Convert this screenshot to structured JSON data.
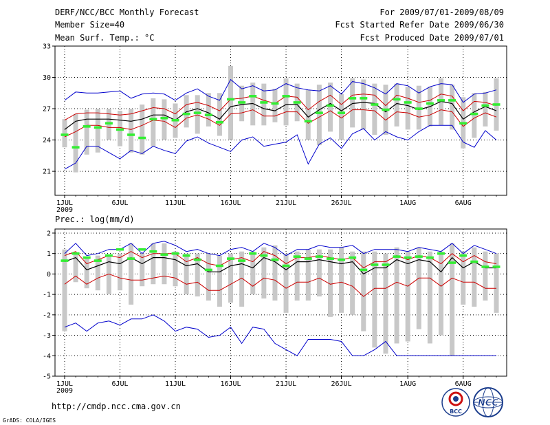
{
  "header": {
    "title": "DERF/NCC/BCC Monthly Forecast",
    "member_size": "Member Size=40",
    "variable": "Mean Surf. Temp.: °C",
    "period": "For 2009/07/01-2009/08/09",
    "started": "Fcst Started Refer Date 2009/06/30",
    "produced": "Fcst Produced Date 2009/07/01"
  },
  "footer": {
    "url": "http://cmdp.ncc.cma.gov.cn",
    "grads": "GrADS: COLA/IGES",
    "logo_bcc": "BCC",
    "logo_ncc": "NCC"
  },
  "colors": {
    "median": "#000000",
    "inner": "#cc0000",
    "outer": "#0000cc",
    "spread": "#c8c8c8",
    "mark": "#33ee33"
  },
  "chart_data": [
    {
      "type": "line",
      "title": "Mean Surf. Temp.: °C",
      "days": 40,
      "x_tick_labels": [
        "1JUL",
        "6JUL",
        "11JUL",
        "16JUL",
        "21JUL",
        "26JUL",
        "1AUG",
        "6AUG"
      ],
      "x_tick_days": [
        1,
        6,
        11,
        16,
        21,
        26,
        32,
        37
      ],
      "x_year_label": "2009",
      "ylim": [
        18.7,
        33
      ],
      "y_ticks": [
        21,
        24,
        27,
        30,
        33
      ],
      "y_tick_labels": [
        "21",
        "24",
        "27",
        "30",
        "33"
      ],
      "series": [
        {
          "name": "max",
          "role": "outer",
          "values": [
            27.8,
            28.6,
            28.5,
            28.5,
            28.6,
            28.7,
            28.0,
            28.4,
            28.5,
            28.4,
            27.8,
            28.5,
            28.9,
            28.2,
            27.8,
            29.8,
            28.9,
            29.2,
            28.7,
            28.8,
            29.4,
            29.0,
            28.8,
            28.7,
            29.2,
            28.4,
            29.6,
            29.4,
            29.0,
            28.4,
            29.4,
            29.2,
            28.5,
            29.1,
            29.4,
            29.3,
            27.6,
            28.4,
            28.5,
            28.8
          ]
        },
        {
          "name": "upper",
          "role": "inner",
          "values": [
            25.9,
            26.5,
            26.6,
            26.6,
            26.5,
            26.4,
            26.5,
            26.8,
            27.1,
            27.0,
            26.5,
            27.4,
            27.6,
            27.3,
            26.8,
            27.9,
            28.0,
            28.2,
            27.8,
            27.5,
            28.2,
            28.1,
            26.9,
            27.7,
            28.3,
            27.4,
            28.3,
            28.4,
            28.3,
            27.3,
            28.3,
            28.0,
            27.6,
            27.8,
            28.4,
            28.2,
            26.8,
            27.7,
            27.6,
            27.3
          ]
        },
        {
          "name": "median",
          "role": "median",
          "values": [
            25.0,
            25.8,
            26.0,
            26.0,
            26.0,
            25.9,
            25.8,
            26.0,
            26.4,
            26.4,
            25.9,
            26.7,
            27.0,
            26.6,
            26.0,
            27.2,
            27.4,
            27.5,
            27.0,
            26.8,
            27.4,
            27.4,
            26.2,
            26.9,
            27.5,
            26.8,
            27.5,
            27.6,
            27.5,
            26.7,
            27.5,
            27.3,
            26.9,
            27.2,
            27.7,
            27.5,
            26.0,
            26.7,
            27.2,
            26.8
          ]
        },
        {
          "name": "lower",
          "role": "inner",
          "values": [
            24.3,
            24.8,
            25.4,
            25.4,
            25.2,
            25.2,
            25.0,
            25.4,
            25.9,
            25.8,
            25.2,
            26.1,
            26.4,
            26.0,
            25.4,
            26.5,
            26.6,
            26.9,
            26.3,
            26.3,
            26.7,
            26.7,
            25.6,
            26.2,
            26.8,
            26.1,
            26.9,
            26.9,
            26.8,
            25.9,
            26.7,
            26.6,
            26.2,
            26.4,
            26.9,
            26.7,
            25.3,
            26.1,
            26.6,
            26.2
          ]
        },
        {
          "name": "min",
          "role": "outer",
          "values": [
            21.2,
            21.8,
            23.4,
            23.4,
            22.8,
            22.2,
            23.0,
            22.7,
            23.4,
            23.0,
            22.7,
            23.9,
            24.3,
            23.7,
            23.3,
            22.9,
            24.0,
            24.3,
            23.4,
            23.6,
            23.8,
            24.5,
            21.7,
            23.6,
            24.2,
            23.2,
            24.6,
            25.1,
            24.0,
            24.8,
            24.3,
            24.0,
            24.8,
            25.4,
            25.4,
            25.4,
            23.8,
            23.3,
            24.9,
            24.0
          ]
        },
        {
          "name": "spread_max",
          "role": "spread",
          "values": [
            26.0,
            26.5,
            26.9,
            27.0,
            27.0,
            26.8,
            27.0,
            27.4,
            28.0,
            27.9,
            27.5,
            28.3,
            28.3,
            28.5,
            28.5,
            31.1,
            29.2,
            29.5,
            29.4,
            28.9,
            29.9,
            29.4,
            28.8,
            29.3,
            29.5,
            28.4,
            29.9,
            29.8,
            29.4,
            29.3,
            29.4,
            29.1,
            29.2,
            29.1,
            29.9,
            29.3,
            28.1,
            28.5,
            28.6,
            29.9
          ]
        },
        {
          "name": "spread_min",
          "role": "spread",
          "values": [
            23.3,
            20.9,
            22.6,
            22.8,
            24.0,
            23.4,
            22.8,
            22.6,
            23.4,
            24.0,
            24.2,
            25.2,
            24.6,
            25.3,
            24.4,
            24.0,
            25.8,
            25.4,
            25.4,
            25.7,
            25.4,
            25.8,
            24.0,
            23.5,
            24.8,
            24.0,
            25.2,
            25.0,
            24.5,
            24.5,
            25.3,
            25.0,
            25.0,
            25.3,
            25.4,
            25.0,
            23.2,
            24.2,
            25.3,
            24.9
          ]
        },
        {
          "name": "ensemble_mean_mark",
          "role": "mark",
          "values": [
            24.5,
            23.3,
            25.3,
            25.2,
            25.6,
            25.0,
            24.5,
            24.2,
            26.0,
            26.1,
            25.9,
            26.5,
            26.6,
            26.4,
            25.7,
            27.9,
            27.6,
            28.2,
            27.6,
            27.5,
            28.2,
            27.6,
            25.8,
            26.6,
            27.3,
            26.6,
            28.0,
            28.0,
            27.4,
            26.9,
            27.9,
            27.6,
            27.0,
            27.5,
            27.8,
            27.8,
            25.6,
            26.5,
            27.3,
            27.4
          ]
        }
      ]
    },
    {
      "type": "line",
      "title": "Prec.: log(mm/d)",
      "days": 40,
      "x_tick_labels": [
        "1JUL",
        "6JUL",
        "11JUL",
        "16JUL",
        "21JUL",
        "26JUL",
        "1AUG",
        "6AUG"
      ],
      "x_tick_days": [
        1,
        6,
        11,
        16,
        21,
        26,
        32,
        37
      ],
      "x_year_label": "2009",
      "ylim": [
        -5,
        2.2
      ],
      "y_ticks": [
        -5,
        -4,
        -3,
        -2,
        -1,
        0,
        1,
        2
      ],
      "y_tick_labels": [
        "-5",
        "-4",
        "-3",
        "-2",
        "-1",
        "0",
        "1",
        "2"
      ],
      "series": [
        {
          "name": "max",
          "role": "outer",
          "values": [
            1.0,
            1.5,
            0.9,
            1.0,
            1.2,
            1.2,
            1.5,
            1.0,
            1.5,
            1.6,
            1.4,
            1.1,
            1.2,
            1.0,
            0.9,
            1.2,
            1.3,
            1.1,
            1.5,
            1.3,
            0.9,
            1.2,
            1.2,
            1.4,
            1.3,
            1.3,
            1.4,
            1.0,
            1.2,
            1.2,
            1.2,
            1.1,
            1.3,
            1.2,
            1.1,
            1.5,
            1.0,
            1.4,
            1.2,
            1.0
          ]
        },
        {
          "name": "upper",
          "role": "inner",
          "values": [
            0.9,
            1.1,
            0.5,
            0.7,
            0.9,
            0.8,
            1.1,
            0.8,
            1.0,
            1.0,
            1.0,
            0.6,
            0.8,
            0.5,
            0.4,
            0.7,
            0.8,
            0.6,
            1.1,
            0.9,
            0.5,
            0.8,
            0.8,
            0.9,
            0.8,
            0.7,
            0.8,
            0.3,
            0.6,
            0.6,
            0.9,
            0.7,
            0.9,
            0.8,
            0.5,
            1.0,
            0.6,
            0.9,
            0.6,
            0.5
          ]
        },
        {
          "name": "median",
          "role": "median",
          "values": [
            0.6,
            0.8,
            0.2,
            0.4,
            0.6,
            0.5,
            0.8,
            0.5,
            0.8,
            0.8,
            0.7,
            0.4,
            0.5,
            0.1,
            0.1,
            0.4,
            0.5,
            0.3,
            0.8,
            0.6,
            0.2,
            0.6,
            0.6,
            0.7,
            0.6,
            0.5,
            0.6,
            0.0,
            0.3,
            0.3,
            0.7,
            0.5,
            0.7,
            0.6,
            0.1,
            0.8,
            0.3,
            0.6,
            0.3,
            0.3
          ]
        },
        {
          "name": "lower",
          "role": "inner",
          "values": [
            -0.5,
            -0.1,
            -0.5,
            -0.2,
            0.0,
            -0.2,
            -0.3,
            -0.3,
            -0.2,
            -0.1,
            -0.2,
            -0.5,
            -0.4,
            -0.8,
            -0.8,
            -0.5,
            -0.2,
            -0.6,
            -0.2,
            -0.3,
            -0.7,
            -0.4,
            -0.4,
            -0.2,
            -0.5,
            -0.4,
            -0.6,
            -1.1,
            -0.7,
            -0.7,
            -0.4,
            -0.6,
            -0.2,
            -0.2,
            -0.6,
            -0.2,
            -0.4,
            -0.4,
            -0.7,
            -0.7
          ]
        },
        {
          "name": "min",
          "role": "outer",
          "values": [
            -2.6,
            -2.4,
            -2.8,
            -2.4,
            -2.3,
            -2.5,
            -2.2,
            -2.2,
            -2.0,
            -2.3,
            -2.8,
            -2.6,
            -2.7,
            -3.1,
            -3.0,
            -2.6,
            -3.4,
            -2.6,
            -2.7,
            -3.4,
            -3.7,
            -4.0,
            -3.2,
            -3.2,
            -3.2,
            -3.3,
            -4.0,
            -4.0,
            -3.7,
            -3.3,
            -4.0,
            -4.0,
            -4.0,
            -4.0,
            -4.0,
            -4.0,
            -4.0,
            -4.0,
            -4.0,
            -4.0
          ]
        },
        {
          "name": "spread_max",
          "role": "spread",
          "values": [
            1.2,
            1.0,
            0.8,
            0.9,
            0.9,
            1.0,
            1.5,
            1.0,
            1.5,
            1.5,
            1.1,
            1.0,
            1.0,
            1.0,
            0.9,
            1.0,
            1.1,
            1.1,
            1.3,
            1.4,
            1.0,
            1.1,
            1.2,
            1.2,
            1.2,
            1.3,
            1.1,
            1.1,
            1.1,
            1.0,
            1.3,
            1.1,
            1.3,
            1.1,
            1.1,
            1.5,
            1.1,
            1.3,
            1.1,
            1.0
          ]
        },
        {
          "name": "spread_min",
          "role": "spread",
          "values": [
            -2.8,
            -0.4,
            -0.7,
            -0.8,
            -1.0,
            -0.8,
            -1.5,
            -0.6,
            -0.5,
            -0.5,
            -0.6,
            -1.0,
            -1.1,
            -1.3,
            -1.6,
            -1.4,
            -1.6,
            -1.0,
            -1.2,
            -1.3,
            -1.9,
            -1.3,
            -1.3,
            -1.1,
            -2.1,
            -1.9,
            -2.0,
            -2.8,
            -3.6,
            -3.9,
            -3.4,
            -3.3,
            -2.7,
            -3.4,
            -3.0,
            -4.0,
            -1.5,
            -1.6,
            -1.3,
            -1.9
          ]
        },
        {
          "name": "ensemble_mean_mark",
          "role": "mark",
          "values": [
            0.65,
            1.0,
            0.8,
            0.65,
            0.9,
            1.2,
            0.75,
            1.2,
            1.1,
            0.95,
            1.0,
            0.9,
            0.7,
            0.2,
            0.4,
            0.75,
            0.65,
            1.0,
            0.9,
            0.7,
            0.4,
            0.85,
            0.75,
            0.85,
            0.75,
            0.7,
            0.8,
            0.2,
            0.45,
            0.45,
            0.85,
            0.8,
            0.85,
            0.8,
            1.0,
            0.55,
            0.9,
            0.6,
            0.35,
            0.35
          ]
        }
      ]
    }
  ]
}
